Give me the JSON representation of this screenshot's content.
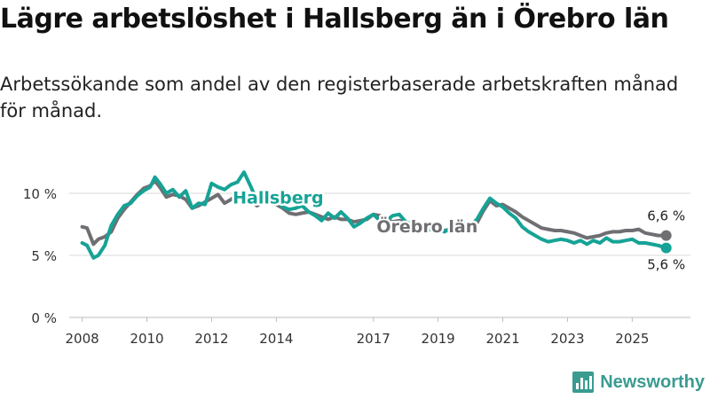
{
  "title": "Lägre arbetslöshet i Hallsberg än i Örebro län",
  "subtitle": "Arbetssökande som andel av den registerbaserade arbetskraften månad för månad.",
  "brand": {
    "name": "Newsworthy",
    "icon": "bar-chart-logo-icon",
    "color": "#3a9b91"
  },
  "chart_data": {
    "type": "line",
    "title": "Lägre arbetslöshet i Hallsberg än i Örebro län",
    "xlabel": "",
    "ylabel": "",
    "xlim": [
      2007.6,
      2026.8
    ],
    "ylim": [
      0,
      10
    ],
    "grid": true,
    "y_ticks": [
      0,
      5,
      10
    ],
    "y_tick_labels": [
      "0 %",
      "5 %",
      "10 %"
    ],
    "x_ticks": [
      2008,
      2010,
      2012,
      2014,
      2017,
      2019,
      2021,
      2023,
      2025
    ],
    "x_tick_labels": [
      "2008",
      "2010",
      "2012",
      "2014",
      "2017",
      "2019",
      "2021",
      "2023",
      "2025"
    ],
    "series": [
      {
        "name": "Örebro län",
        "label": "Örebro län",
        "color": "#6f6f73",
        "end_label": "6,6 %",
        "x": [
          2008.0,
          2008.15,
          2008.35,
          2008.5,
          2008.7,
          2008.9,
          2009.1,
          2009.3,
          2009.5,
          2009.7,
          2009.9,
          2010.1,
          2010.25,
          2010.4,
          2010.6,
          2010.8,
          2011.0,
          2011.2,
          2011.4,
          2011.6,
          2011.8,
          2012.0,
          2012.2,
          2012.4,
          2012.6,
          2012.8,
          2013.0,
          2013.2,
          2013.4,
          2013.6,
          2013.8,
          2014.0,
          2014.2,
          2014.4,
          2014.6,
          2014.8,
          2015.0,
          2015.2,
          2015.4,
          2015.6,
          2015.8,
          2016.0,
          2016.2,
          2016.4,
          2016.6,
          2016.8,
          2017.0,
          2017.2,
          2017.4,
          2017.6,
          2017.8,
          2018.0,
          2018.2,
          2018.4,
          2018.6,
          2018.8,
          2019.0,
          2019.2,
          2019.4,
          2019.6,
          2019.8,
          2020.0,
          2020.2,
          2020.4,
          2020.6,
          2020.8,
          2021.0,
          2021.2,
          2021.4,
          2021.6,
          2021.8,
          2022.0,
          2022.2,
          2022.4,
          2022.6,
          2022.8,
          2023.0,
          2023.2,
          2023.4,
          2023.6,
          2023.8,
          2024.0,
          2024.2,
          2024.4,
          2024.6,
          2024.8,
          2025.0,
          2025.2,
          2025.4,
          2025.6,
          2025.8,
          2026.05
        ],
        "values": [
          7.3,
          7.2,
          5.9,
          6.3,
          6.5,
          6.9,
          8.0,
          8.7,
          9.3,
          9.9,
          10.4,
          10.6,
          11.0,
          10.5,
          9.7,
          9.9,
          9.8,
          9.5,
          8.8,
          9.0,
          9.3,
          9.6,
          9.9,
          9.2,
          9.5,
          9.9,
          9.7,
          9.5,
          9.0,
          9.3,
          9.2,
          9.1,
          8.8,
          8.4,
          8.3,
          8.4,
          8.5,
          8.3,
          8.1,
          7.9,
          8.1,
          7.9,
          7.9,
          7.7,
          7.8,
          7.9,
          8.3,
          8.2,
          7.9,
          7.7,
          7.8,
          7.6,
          7.2,
          6.9,
          7.0,
          7.1,
          7.1,
          7.0,
          7.1,
          7.2,
          7.3,
          7.3,
          7.6,
          8.6,
          9.4,
          9.0,
          9.1,
          8.8,
          8.5,
          8.1,
          7.8,
          7.5,
          7.2,
          7.1,
          7.0,
          7.0,
          6.9,
          6.8,
          6.6,
          6.4,
          6.5,
          6.6,
          6.8,
          6.9,
          6.9,
          7.0,
          7.0,
          7.1,
          6.8,
          6.7,
          6.6,
          6.6
        ]
      },
      {
        "name": "Hallsberg",
        "label": "Hallsberg",
        "color": "#16a396",
        "end_label": "5,6 %",
        "x": [
          2008.0,
          2008.15,
          2008.35,
          2008.5,
          2008.7,
          2008.9,
          2009.1,
          2009.3,
          2009.5,
          2009.7,
          2009.9,
          2010.1,
          2010.25,
          2010.4,
          2010.6,
          2010.8,
          2011.0,
          2011.2,
          2011.4,
          2011.6,
          2011.8,
          2012.0,
          2012.2,
          2012.4,
          2012.6,
          2012.8,
          2013.0,
          2013.2,
          2013.4,
          2013.6,
          2013.8,
          2014.0,
          2014.2,
          2014.4,
          2014.6,
          2014.8,
          2015.0,
          2015.2,
          2015.4,
          2015.6,
          2015.8,
          2016.0,
          2016.2,
          2016.4,
          2016.6,
          2016.8,
          2017.0,
          2017.2,
          2017.4,
          2017.6,
          2017.8,
          2018.0,
          2018.2,
          2018.4,
          2018.6,
          2018.8,
          2019.0,
          2019.2,
          2019.4,
          2019.6,
          2019.8,
          2020.0,
          2020.2,
          2020.4,
          2020.6,
          2020.8,
          2021.0,
          2021.2,
          2021.4,
          2021.6,
          2021.8,
          2022.0,
          2022.2,
          2022.4,
          2022.6,
          2022.8,
          2023.0,
          2023.2,
          2023.4,
          2023.6,
          2023.8,
          2024.0,
          2024.2,
          2024.4,
          2024.6,
          2024.8,
          2025.0,
          2025.2,
          2025.4,
          2025.6,
          2025.8,
          2026.05
        ],
        "values": [
          6.0,
          5.8,
          4.8,
          5.0,
          5.8,
          7.4,
          8.3,
          9.0,
          9.2,
          9.8,
          10.2,
          10.5,
          11.3,
          10.8,
          10.0,
          10.3,
          9.7,
          10.2,
          8.8,
          9.2,
          9.1,
          10.8,
          10.5,
          10.3,
          10.7,
          10.9,
          11.7,
          10.6,
          9.4,
          9.6,
          9.3,
          9.5,
          8.9,
          8.7,
          8.8,
          9.0,
          8.5,
          8.2,
          7.8,
          8.4,
          8.0,
          8.5,
          8.0,
          7.3,
          7.6,
          8.0,
          8.3,
          7.8,
          7.8,
          8.2,
          8.3,
          7.7,
          7.5,
          7.2,
          7.0,
          7.1,
          7.1,
          6.9,
          7.2,
          7.4,
          7.6,
          7.4,
          7.9,
          8.8,
          9.6,
          9.2,
          8.9,
          8.4,
          8.0,
          7.3,
          6.9,
          6.6,
          6.3,
          6.1,
          6.2,
          6.3,
          6.2,
          6.0,
          6.2,
          5.9,
          6.2,
          6.0,
          6.4,
          6.1,
          6.1,
          6.2,
          6.3,
          6.0,
          6.0,
          5.9,
          5.8,
          5.6
        ]
      }
    ]
  }
}
